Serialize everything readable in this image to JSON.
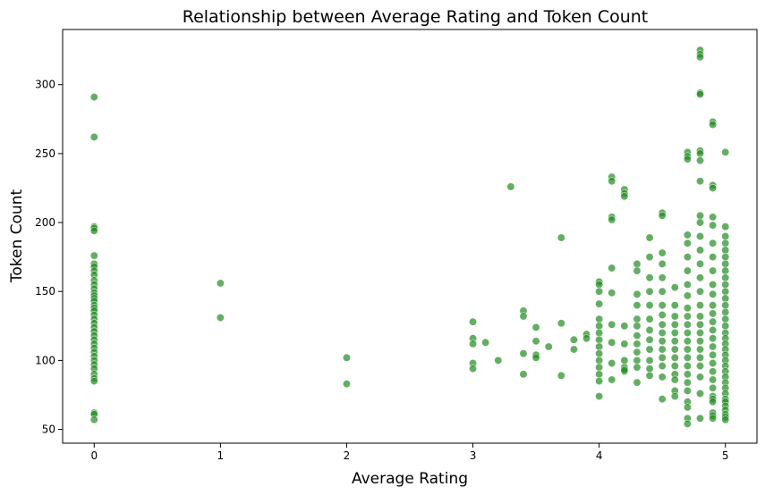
{
  "chart_data": {
    "type": "scatter",
    "title": "Relationship between Average Rating and Token Count",
    "xlabel": "Average Rating",
    "ylabel": "Token Count",
    "xlim": [
      -0.25,
      5.25
    ],
    "ylim": [
      40,
      340
    ],
    "xticks": [
      0,
      1,
      2,
      3,
      4,
      5
    ],
    "yticks": [
      50,
      100,
      150,
      200,
      250,
      300
    ],
    "grid": false,
    "legend": "none",
    "marker_color": "#228b22",
    "marker_alpha": 0.7,
    "series": [
      {
        "x": [
          0,
          0,
          0,
          0,
          0,
          0,
          0,
          0,
          0,
          0,
          0,
          0,
          0,
          0,
          0,
          0,
          0,
          0,
          0,
          0,
          0,
          0,
          0,
          0,
          0,
          0,
          0,
          0,
          0,
          0,
          0,
          0,
          0,
          0,
          0,
          0,
          0,
          0,
          0,
          0,
          1,
          1,
          2,
          2,
          3,
          3,
          3,
          3,
          3,
          3.1,
          3.2,
          3.3,
          3.4,
          3.4,
          3.4,
          3.4,
          3.5,
          3.5,
          3.5,
          3.5,
          3.6,
          3.7,
          3.7,
          3.7,
          3.8,
          3.8,
          3.9,
          3.9,
          4,
          4,
          4,
          4,
          4,
          4,
          4,
          4,
          4,
          4,
          4,
          4,
          4,
          4,
          4,
          4.1,
          4.1,
          4.1,
          4.1,
          4.1,
          4.1,
          4.1,
          4.1,
          4.1,
          4.1,
          4.2,
          4.2,
          4.2,
          4.2,
          4.2,
          4.2,
          4.2,
          4.2,
          4.2,
          4.3,
          4.3,
          4.3,
          4.3,
          4.3,
          4.3,
          4.3,
          4.3,
          4.3,
          4.3,
          4.3,
          4.3,
          4.4,
          4.4,
          4.4,
          4.4,
          4.4,
          4.4,
          4.4,
          4.4,
          4.4,
          4.4,
          4.4,
          4.4,
          4.5,
          4.5,
          4.5,
          4.5,
          4.5,
          4.5,
          4.5,
          4.5,
          4.5,
          4.5,
          4.5,
          4.5,
          4.5,
          4.5,
          4.5,
          4.5,
          4.6,
          4.6,
          4.6,
          4.6,
          4.6,
          4.6,
          4.6,
          4.6,
          4.6,
          4.6,
          4.6,
          4.6,
          4.6,
          4.7,
          4.7,
          4.7,
          4.7,
          4.7,
          4.7,
          4.7,
          4.7,
          4.7,
          4.7,
          4.7,
          4.7,
          4.7,
          4.7,
          4.7,
          4.7,
          4.7,
          4.7,
          4.7,
          4.7,
          4.7,
          4.7,
          4.7,
          4.7,
          4.8,
          4.8,
          4.8,
          4.8,
          4.8,
          4.8,
          4.8,
          4.8,
          4.8,
          4.8,
          4.8,
          4.8,
          4.8,
          4.8,
          4.8,
          4.8,
          4.8,
          4.8,
          4.8,
          4.8,
          4.8,
          4.8,
          4.8,
          4.8,
          4.8,
          4.8,
          4.8,
          4.9,
          4.9,
          4.9,
          4.9,
          4.9,
          4.9,
          4.9,
          4.9,
          4.9,
          4.9,
          4.9,
          4.9,
          4.9,
          4.9,
          4.9,
          4.9,
          4.9,
          4.9,
          4.9,
          4.9,
          4.9,
          4.9,
          4.9,
          4.9,
          4.9,
          4.9,
          4.9,
          4.9,
          5,
          5,
          5,
          5,
          5,
          5,
          5,
          5,
          5,
          5,
          5,
          5,
          5,
          5,
          5,
          5,
          5,
          5,
          5,
          5,
          5,
          5,
          5,
          5,
          5,
          5,
          5,
          5,
          5,
          5,
          5,
          5,
          5,
          5,
          5
        ],
        "y": [
          291,
          262,
          197,
          196,
          194,
          176,
          170,
          168,
          165,
          162,
          158,
          155,
          152,
          149,
          147,
          145,
          143,
          140,
          138,
          136,
          133,
          130,
          127,
          124,
          121,
          118,
          115,
          112,
          109,
          106,
          103,
          100,
          97,
          94,
          90,
          87,
          85,
          62,
          61,
          57,
          156,
          131,
          102,
          83,
          128,
          116,
          112,
          98,
          94,
          113,
          100,
          226,
          136,
          132,
          105,
          90,
          124,
          114,
          104,
          102,
          110,
          189,
          127,
          89,
          115,
          108,
          119,
          116,
          157,
          155,
          150,
          141,
          130,
          125,
          120,
          115,
          110,
          105,
          100,
          95,
          90,
          85,
          74,
          233,
          230,
          204,
          202,
          167,
          149,
          126,
          113,
          98,
          86,
          224,
          221,
          219,
          125,
          112,
          100,
          95,
          92,
          93,
          170,
          165,
          148,
          140,
          130,
          125,
          118,
          112,
          106,
          100,
          95,
          84,
          189,
          175,
          160,
          150,
          140,
          130,
          122,
          115,
          108,
          100,
          94,
          89,
          207,
          205,
          178,
          170,
          160,
          150,
          140,
          133,
          126,
          120,
          114,
          108,
          102,
          96,
          88,
          72,
          153,
          140,
          132,
          126,
          120,
          114,
          108,
          102,
          96,
          90,
          86,
          78,
          74,
          251,
          248,
          246,
          191,
          185,
          175,
          165,
          155,
          147,
          138,
          132,
          126,
          120,
          114,
          108,
          102,
          96,
          90,
          84,
          78,
          70,
          66,
          58,
          54,
          325,
          322,
          320,
          294,
          293,
          252,
          250,
          245,
          230,
          205,
          200,
          190,
          180,
          170,
          160,
          150,
          140,
          132,
          126,
          120,
          114,
          108,
          102,
          96,
          88,
          76,
          58,
          273,
          271,
          227,
          225,
          204,
          198,
          185,
          175,
          165,
          155,
          148,
          140,
          134,
          128,
          122,
          116,
          110,
          104,
          98,
          92,
          86,
          80,
          74,
          72,
          70,
          62,
          60,
          58,
          251,
          197,
          190,
          185,
          180,
          175,
          170,
          165,
          160,
          155,
          150,
          145,
          140,
          135,
          130,
          125,
          120,
          116,
          112,
          108,
          104,
          100,
          96,
          92,
          88,
          84,
          80,
          76,
          72,
          70,
          67,
          64,
          61,
          59,
          57
        ]
      }
    ]
  }
}
